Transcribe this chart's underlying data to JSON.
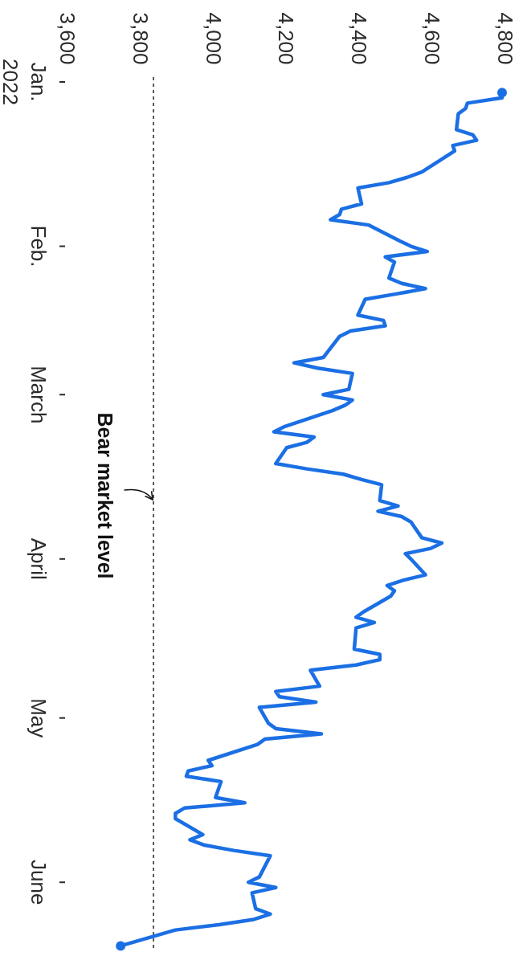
{
  "chart_data": {
    "type": "line",
    "orientation": "horizontal",
    "x": [
      "2022-01-03",
      "2022-01-04",
      "2022-01-05",
      "2022-01-06",
      "2022-01-07",
      "2022-01-10",
      "2022-01-11",
      "2022-01-12",
      "2022-01-13",
      "2022-01-14",
      "2022-01-18",
      "2022-01-19",
      "2022-01-20",
      "2022-01-21",
      "2022-01-24",
      "2022-01-25",
      "2022-01-26",
      "2022-01-27",
      "2022-01-28",
      "2022-01-31",
      "2022-02-01",
      "2022-02-02",
      "2022-02-03",
      "2022-02-04",
      "2022-02-07",
      "2022-02-08",
      "2022-02-09",
      "2022-02-10",
      "2022-02-11",
      "2022-02-14",
      "2022-02-15",
      "2022-02-16",
      "2022-02-17",
      "2022-02-18",
      "2022-02-22",
      "2022-02-23",
      "2022-02-24",
      "2022-02-25",
      "2022-02-28",
      "2022-03-01",
      "2022-03-02",
      "2022-03-03",
      "2022-03-04",
      "2022-03-07",
      "2022-03-08",
      "2022-03-09",
      "2022-03-10",
      "2022-03-11",
      "2022-03-14",
      "2022-03-15",
      "2022-03-16",
      "2022-03-17",
      "2022-03-18",
      "2022-03-21",
      "2022-03-22",
      "2022-03-23",
      "2022-03-24",
      "2022-03-25",
      "2022-03-28",
      "2022-03-29",
      "2022-03-30",
      "2022-03-31",
      "2022-04-01",
      "2022-04-04",
      "2022-04-05",
      "2022-04-06",
      "2022-04-07",
      "2022-04-08",
      "2022-04-11",
      "2022-04-12",
      "2022-04-13",
      "2022-04-14",
      "2022-04-18",
      "2022-04-19",
      "2022-04-20",
      "2022-04-21",
      "2022-04-22",
      "2022-04-25",
      "2022-04-26",
      "2022-04-27",
      "2022-04-28",
      "2022-04-29",
      "2022-05-02",
      "2022-05-03",
      "2022-05-04",
      "2022-05-05",
      "2022-05-06",
      "2022-05-09",
      "2022-05-10",
      "2022-05-11",
      "2022-05-12",
      "2022-05-13",
      "2022-05-16",
      "2022-05-17",
      "2022-05-18",
      "2022-05-19",
      "2022-05-20",
      "2022-05-23",
      "2022-05-24",
      "2022-05-25",
      "2022-05-26",
      "2022-05-27",
      "2022-05-31",
      "2022-06-01",
      "2022-06-02",
      "2022-06-03",
      "2022-06-06",
      "2022-06-07",
      "2022-06-08",
      "2022-06-09",
      "2022-06-10",
      "2022-06-13"
    ],
    "series": [
      {
        "color": "#1b6fe4",
        "values": [
          4795,
          4795,
          4700,
          4695,
          4675,
          4670,
          4715,
          4725,
          4660,
          4665,
          4575,
          4535,
          4485,
          4400,
          4410,
          4355,
          4350,
          4325,
          4430,
          4515,
          4545,
          4590,
          4475,
          4500,
          4485,
          4520,
          4585,
          4505,
          4420,
          4400,
          4470,
          4475,
          4380,
          4350,
          4305,
          4225,
          4290,
          4385,
          4375,
          4305,
          4385,
          4365,
          4330,
          4200,
          4170,
          4280,
          4260,
          4205,
          4175,
          4260,
          4360,
          4410,
          4465,
          4460,
          4510,
          4455,
          4520,
          4545,
          4575,
          4630,
          4600,
          4530,
          4545,
          4585,
          4525,
          4480,
          4500,
          4490,
          4415,
          4395,
          4445,
          4395,
          4390,
          4460,
          4460,
          4395,
          4270,
          4295,
          4175,
          4185,
          4285,
          4130,
          4155,
          4175,
          4300,
          4145,
          4125,
          3990,
          4000,
          3935,
          3930,
          4025,
          4010,
          4090,
          3925,
          3900,
          3900,
          3975,
          3940,
          3980,
          4060,
          4160,
          4130,
          4100,
          4175,
          4110,
          4120,
          4160,
          4115,
          4020,
          3900,
          3750
        ]
      },
      {
        "type": "scatter",
        "color": "#1b6fe4",
        "marker": "circle",
        "x": [
          "2022-01-03",
          "2022-06-13"
        ],
        "values": [
          4795,
          3750
        ]
      }
    ],
    "xlim": [
      3600,
      4850
    ],
    "xticks": [
      {
        "value": 3600,
        "label": "3,600"
      },
      {
        "value": 3800,
        "label": "3,800"
      },
      {
        "value": 4000,
        "label": "4,000"
      },
      {
        "value": 4200,
        "label": "4,200"
      },
      {
        "value": 4400,
        "label": "4,400"
      },
      {
        "value": 4600,
        "label": "4,600"
      },
      {
        "value": 4800,
        "label": "4,800"
      }
    ],
    "ylim": [
      "2022-06-14",
      "2022-01-01"
    ],
    "yticks": [
      {
        "value": "2022-01-01",
        "label": "Jan.\n2022"
      },
      {
        "value": "2022-02-01",
        "label": "Feb."
      },
      {
        "value": "2022-03-01",
        "label": "March"
      },
      {
        "value": "2022-04-01",
        "label": "April"
      },
      {
        "value": "2022-05-01",
        "label": "May"
      },
      {
        "value": "2022-06-01",
        "label": "June"
      }
    ],
    "ref_lines": [
      {
        "axis": "x",
        "value": 3840,
        "label": "Bear market level",
        "color": "#333333",
        "line_style": "dashed"
      }
    ]
  }
}
